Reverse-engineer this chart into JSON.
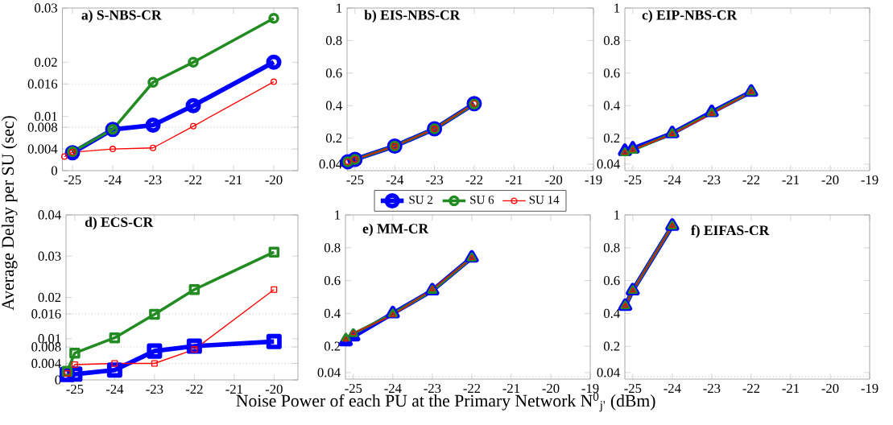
{
  "chart_data": [
    {
      "type": "line",
      "title": "a) S-NBS-CR",
      "ylabel": "Average Delay per SU (sec)",
      "marker": "circle",
      "xlim": [
        -25.25,
        -19.4
      ],
      "ylim": [
        0,
        0.03
      ],
      "xticks": [
        -25,
        -24,
        -23,
        -22,
        -21,
        -20
      ],
      "yticks": [
        0,
        0.004,
        0.008,
        0.01,
        0.016,
        0.02,
        0.03
      ],
      "ref_lines": [
        {
          "axis": "y",
          "value": 0.004,
          "color": "#808080",
          "line_style": "dotted"
        },
        {
          "axis": "y",
          "value": 0.008,
          "color": "#808080",
          "line_style": "dotted"
        },
        {
          "axis": "y",
          "value": 0.016,
          "color": "#808080",
          "line_style": "dotted"
        }
      ],
      "series": [
        {
          "color": "#0000ff",
          "x": [
            -25,
            -24,
            -23,
            -22,
            -20
          ],
          "values": [
            0.0033,
            0.0076,
            0.0084,
            0.012,
            0.02
          ]
        },
        {
          "color": "#228b22",
          "x": [
            -25,
            -24,
            -23,
            -22,
            -20
          ],
          "values": [
            0.0035,
            0.0076,
            0.0163,
            0.02,
            0.0281
          ]
        },
        {
          "color": "#ff0000",
          "x": [
            -25.2,
            -25,
            -24,
            -23,
            -22,
            -20
          ],
          "values": [
            0.0026,
            0.0034,
            0.004,
            0.0042,
            0.0082,
            0.0164
          ]
        }
      ]
    },
    {
      "type": "line",
      "title": "b) EIS-NBS-CR",
      "marker": "circle",
      "legend": "bottom",
      "xlim": [
        -25.2,
        -19
      ],
      "ylim": [
        0,
        1
      ],
      "xticks": [
        -25,
        -24,
        -23,
        -22,
        -21,
        -20,
        -19
      ],
      "yticks": [
        0.04,
        0.2,
        0.4,
        0.6,
        0.8,
        1
      ],
      "ref_lines": [
        {
          "axis": "y",
          "value": 0.016,
          "color": "#808080",
          "line_style": "dotted"
        }
      ],
      "series": [
        {
          "name": "SU 2",
          "color": "#0000ff",
          "x": [
            -25.18,
            -25,
            -24,
            -23,
            -22
          ],
          "values": [
            0.055,
            0.069,
            0.151,
            0.257,
            0.412
          ]
        },
        {
          "name": "SU 6",
          "color": "#228b22",
          "x": [
            -25.18,
            -25,
            -24,
            -23,
            -22
          ],
          "values": [
            0.055,
            0.069,
            0.151,
            0.257,
            0.41
          ]
        },
        {
          "name": "SU 14",
          "color": "#ff0000",
          "x": [
            -25.18,
            -25,
            -24,
            -23,
            -22
          ],
          "values": [
            0.055,
            0.069,
            0.151,
            0.257,
            0.412
          ]
        }
      ]
    },
    {
      "type": "line",
      "title": "c) EIP-NBS-CR",
      "marker": "triangle",
      "xlim": [
        -25.2,
        -19
      ],
      "ylim": [
        0,
        1
      ],
      "xticks": [
        -25,
        -24,
        -23,
        -22,
        -21,
        -20,
        -19
      ],
      "yticks": [
        0.04,
        0.2,
        0.4,
        0.6,
        0.8,
        1
      ],
      "ref_lines": [
        {
          "axis": "y",
          "value": 0.016,
          "color": "#808080",
          "line_style": "dotted"
        }
      ],
      "series": [
        {
          "color": "#0000ff",
          "x": [
            -25.2,
            -25,
            -24,
            -23,
            -22
          ],
          "values": [
            0.12,
            0.135,
            0.23,
            0.36,
            0.485
          ]
        },
        {
          "color": "#228b22",
          "x": [
            -25.2,
            -25,
            -24,
            -23,
            -22
          ],
          "values": [
            0.11,
            0.125,
            0.228,
            0.355,
            0.484
          ]
        },
        {
          "color": "#ff0000",
          "x": [
            -25.2,
            -25,
            -24,
            -23,
            -22
          ],
          "values": [
            0.11,
            0.128,
            0.225,
            0.35,
            0.484
          ]
        }
      ]
    },
    {
      "type": "line",
      "title": "d) ECS-CR",
      "marker": "square",
      "xlim": [
        -25.22,
        -19.4
      ],
      "ylim": [
        0,
        0.04
      ],
      "xticks": [
        -25,
        -24,
        -23,
        -22,
        -21,
        -20
      ],
      "yticks": [
        0,
        0.004,
        0.008,
        0.01,
        0.016,
        0.02,
        0.03,
        0.04
      ],
      "ref_lines": [
        {
          "axis": "y",
          "value": 0.004,
          "color": "#808080",
          "line_style": "dotted"
        },
        {
          "axis": "y",
          "value": 0.008,
          "color": "#808080",
          "line_style": "dotted"
        },
        {
          "axis": "y",
          "value": 0.016,
          "color": "#808080",
          "line_style": "dotted"
        }
      ],
      "series": [
        {
          "color": "#0000ff",
          "x": [
            -25.19,
            -25,
            -24,
            -23,
            -22,
            -20
          ],
          "values": [
            0.0013,
            0.0014,
            0.0024,
            0.007,
            0.0082,
            0.0093
          ]
        },
        {
          "color": "#228b22",
          "x": [
            -25.19,
            -25,
            -24,
            -23,
            -22,
            -20
          ],
          "values": [
            0.0021,
            0.0065,
            0.0102,
            0.0159,
            0.0219,
            0.031
          ]
        },
        {
          "color": "#ff0000",
          "x": [
            -25.19,
            -25,
            -24,
            -23,
            -22,
            -20
          ],
          "values": [
            0.0016,
            0.0037,
            0.004,
            0.004,
            0.0074,
            0.0219
          ]
        }
      ]
    },
    {
      "type": "line",
      "title": "e) MM-CR",
      "xlabel": "Noise Power of each PU at the Primary Network N$^{0}$$_{j'}$ (dBm)",
      "marker": "triangle",
      "xlim": [
        -25.2,
        -19
      ],
      "ylim": [
        0,
        1
      ],
      "xticks": [
        -25,
        -24,
        -23,
        -22,
        -21,
        -20,
        -19
      ],
      "yticks": [
        0.04,
        0.2,
        0.4,
        0.6,
        0.8,
        1
      ],
      "ref_lines": [
        {
          "axis": "y",
          "value": 0.016,
          "color": "#808080",
          "line_style": "dotted"
        }
      ],
      "series": [
        {
          "color": "#0000ff",
          "x": [
            -25.19,
            -25,
            -24,
            -23,
            -22
          ],
          "values": [
            0.23,
            0.26,
            0.4,
            0.54,
            0.74
          ]
        },
        {
          "color": "#228b22",
          "x": [
            -25.19,
            -25,
            -24,
            -23,
            -22
          ],
          "values": [
            0.25,
            0.277,
            0.397,
            0.54,
            0.738
          ]
        },
        {
          "color": "#ff0000",
          "x": [
            -25.19,
            -25,
            -24,
            -23,
            -22
          ],
          "values": [
            0.24,
            0.28,
            0.39,
            0.548,
            0.738
          ]
        }
      ]
    },
    {
      "type": "line",
      "title": "f) EIFAS-CR",
      "marker": "triangle",
      "xlim": [
        -25.2,
        -19
      ],
      "ylim": [
        0,
        1
      ],
      "xticks": [
        -25,
        -24,
        -23,
        -22,
        -21,
        -20,
        -19
      ],
      "yticks": [
        0.04,
        0.2,
        0.4,
        0.6,
        0.8,
        1
      ],
      "ref_lines": [
        {
          "axis": "y",
          "value": 0.016,
          "color": "#808080",
          "line_style": "dotted"
        }
      ],
      "series": [
        {
          "color": "#0000ff",
          "x": [
            -25.19,
            -25,
            -24
          ],
          "values": [
            0.446,
            0.54,
            0.933
          ]
        },
        {
          "color": "#228b22",
          "x": [
            -25.19,
            -25,
            -24
          ],
          "values": [
            0.446,
            0.54,
            0.933
          ]
        },
        {
          "color": "#ff0000",
          "x": [
            -25.19,
            -25,
            -24
          ],
          "values": [
            0.446,
            0.54,
            0.933
          ]
        }
      ]
    }
  ]
}
